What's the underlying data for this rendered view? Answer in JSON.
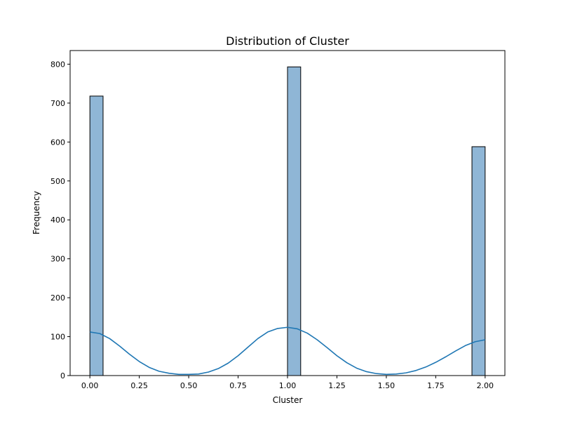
{
  "chart_data": {
    "type": "bar",
    "title": "Distribution of Cluster",
    "xlabel": "Cluster",
    "ylabel": "Frequency",
    "xlim": [
      -0.1,
      2.1
    ],
    "ylim": [
      0,
      835
    ],
    "xticks": [
      0.0,
      0.25,
      0.5,
      0.75,
      1.0,
      1.25,
      1.5,
      1.75,
      2.0
    ],
    "xtick_labels": [
      "0.00",
      "0.25",
      "0.50",
      "0.75",
      "1.00",
      "1.25",
      "1.50",
      "1.75",
      "2.00"
    ],
    "yticks": [
      0,
      100,
      200,
      300,
      400,
      500,
      600,
      700,
      800
    ],
    "ytick_labels": [
      "0",
      "100",
      "200",
      "300",
      "400",
      "500",
      "600",
      "700",
      "800"
    ],
    "bins": [
      {
        "x0": 0.0,
        "x1": 0.0667,
        "count": 718
      },
      {
        "x0": 1.0,
        "x1": 1.0667,
        "count": 793
      },
      {
        "x0": 1.9333,
        "x1": 2.0,
        "count": 588
      }
    ],
    "kde": {
      "x": [
        0.0,
        0.05,
        0.1,
        0.15,
        0.2,
        0.25,
        0.3,
        0.35,
        0.4,
        0.45,
        0.5,
        0.55,
        0.6,
        0.65,
        0.7,
        0.75,
        0.8,
        0.85,
        0.9,
        0.95,
        1.0,
        1.05,
        1.1,
        1.15,
        1.2,
        1.25,
        1.3,
        1.35,
        1.4,
        1.45,
        1.5,
        1.55,
        1.6,
        1.65,
        1.7,
        1.75,
        1.8,
        1.85,
        1.9,
        1.95,
        2.0
      ],
      "y": [
        112,
        108,
        95,
        76,
        55,
        36,
        21,
        11,
        6,
        3,
        3,
        4,
        9,
        18,
        32,
        51,
        73,
        95,
        112,
        121,
        124,
        120,
        109,
        92,
        72,
        51,
        33,
        19,
        10,
        5,
        3,
        4,
        7,
        13,
        22,
        34,
        48,
        63,
        77,
        87,
        92
      ]
    },
    "bar_color": "#8fb6d6",
    "bar_edge_color": "#000000",
    "kde_color": "#1f77b4",
    "grid": false,
    "legend": "none"
  }
}
